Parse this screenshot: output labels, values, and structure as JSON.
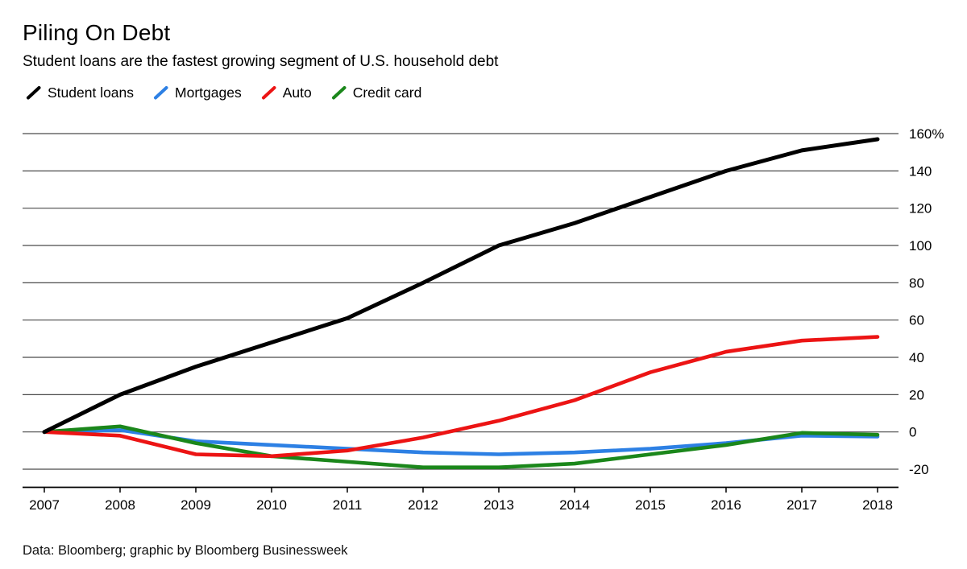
{
  "chart_data": {
    "type": "line",
    "title": "Piling On Debt",
    "subtitle": "Student loans are the fastest growing segment of U.S. household debt",
    "source": "Data: Bloomberg; graphic by Bloomberg Businessweek",
    "x": [
      "2007",
      "2008",
      "2009",
      "2010",
      "2011",
      "2012",
      "2013",
      "2014",
      "2015",
      "2016",
      "2017",
      "2018"
    ],
    "series": [
      {
        "name": "Student loans",
        "color": "#000000",
        "values": [
          0,
          20,
          35,
          48,
          61,
          80,
          100,
          112,
          126,
          140,
          151,
          157
        ]
      },
      {
        "name": "Mortgages",
        "color": "#2d80e4",
        "values": [
          0,
          1,
          -5,
          -7,
          -9,
          -11,
          -12,
          -11,
          -9,
          -6,
          -2,
          -2.5
        ]
      },
      {
        "name": "Auto",
        "color": "#ec1414",
        "values": [
          0,
          -2,
          -12,
          -13,
          -10,
          -3,
          6,
          17,
          32,
          43,
          49,
          51
        ]
      },
      {
        "name": "Credit card",
        "color": "#1b871b",
        "values": [
          0,
          3,
          -6,
          -13,
          -16,
          -19,
          -19,
          -17,
          -12,
          -7,
          -0.5,
          -1.5
        ]
      }
    ],
    "y_ticks": [
      160,
      140,
      120,
      100,
      80,
      60,
      40,
      20,
      0,
      -20
    ],
    "y_tick_labels": [
      "160%",
      "140",
      "120",
      "100",
      "80",
      "60",
      "40",
      "20",
      "0",
      "-20"
    ],
    "ylim": [
      -20,
      160
    ],
    "grid": "horizontal",
    "legend_position": "top",
    "colors": {
      "gridline": "#4a4a4a",
      "axis": "#000000",
      "text": "#000000"
    }
  }
}
